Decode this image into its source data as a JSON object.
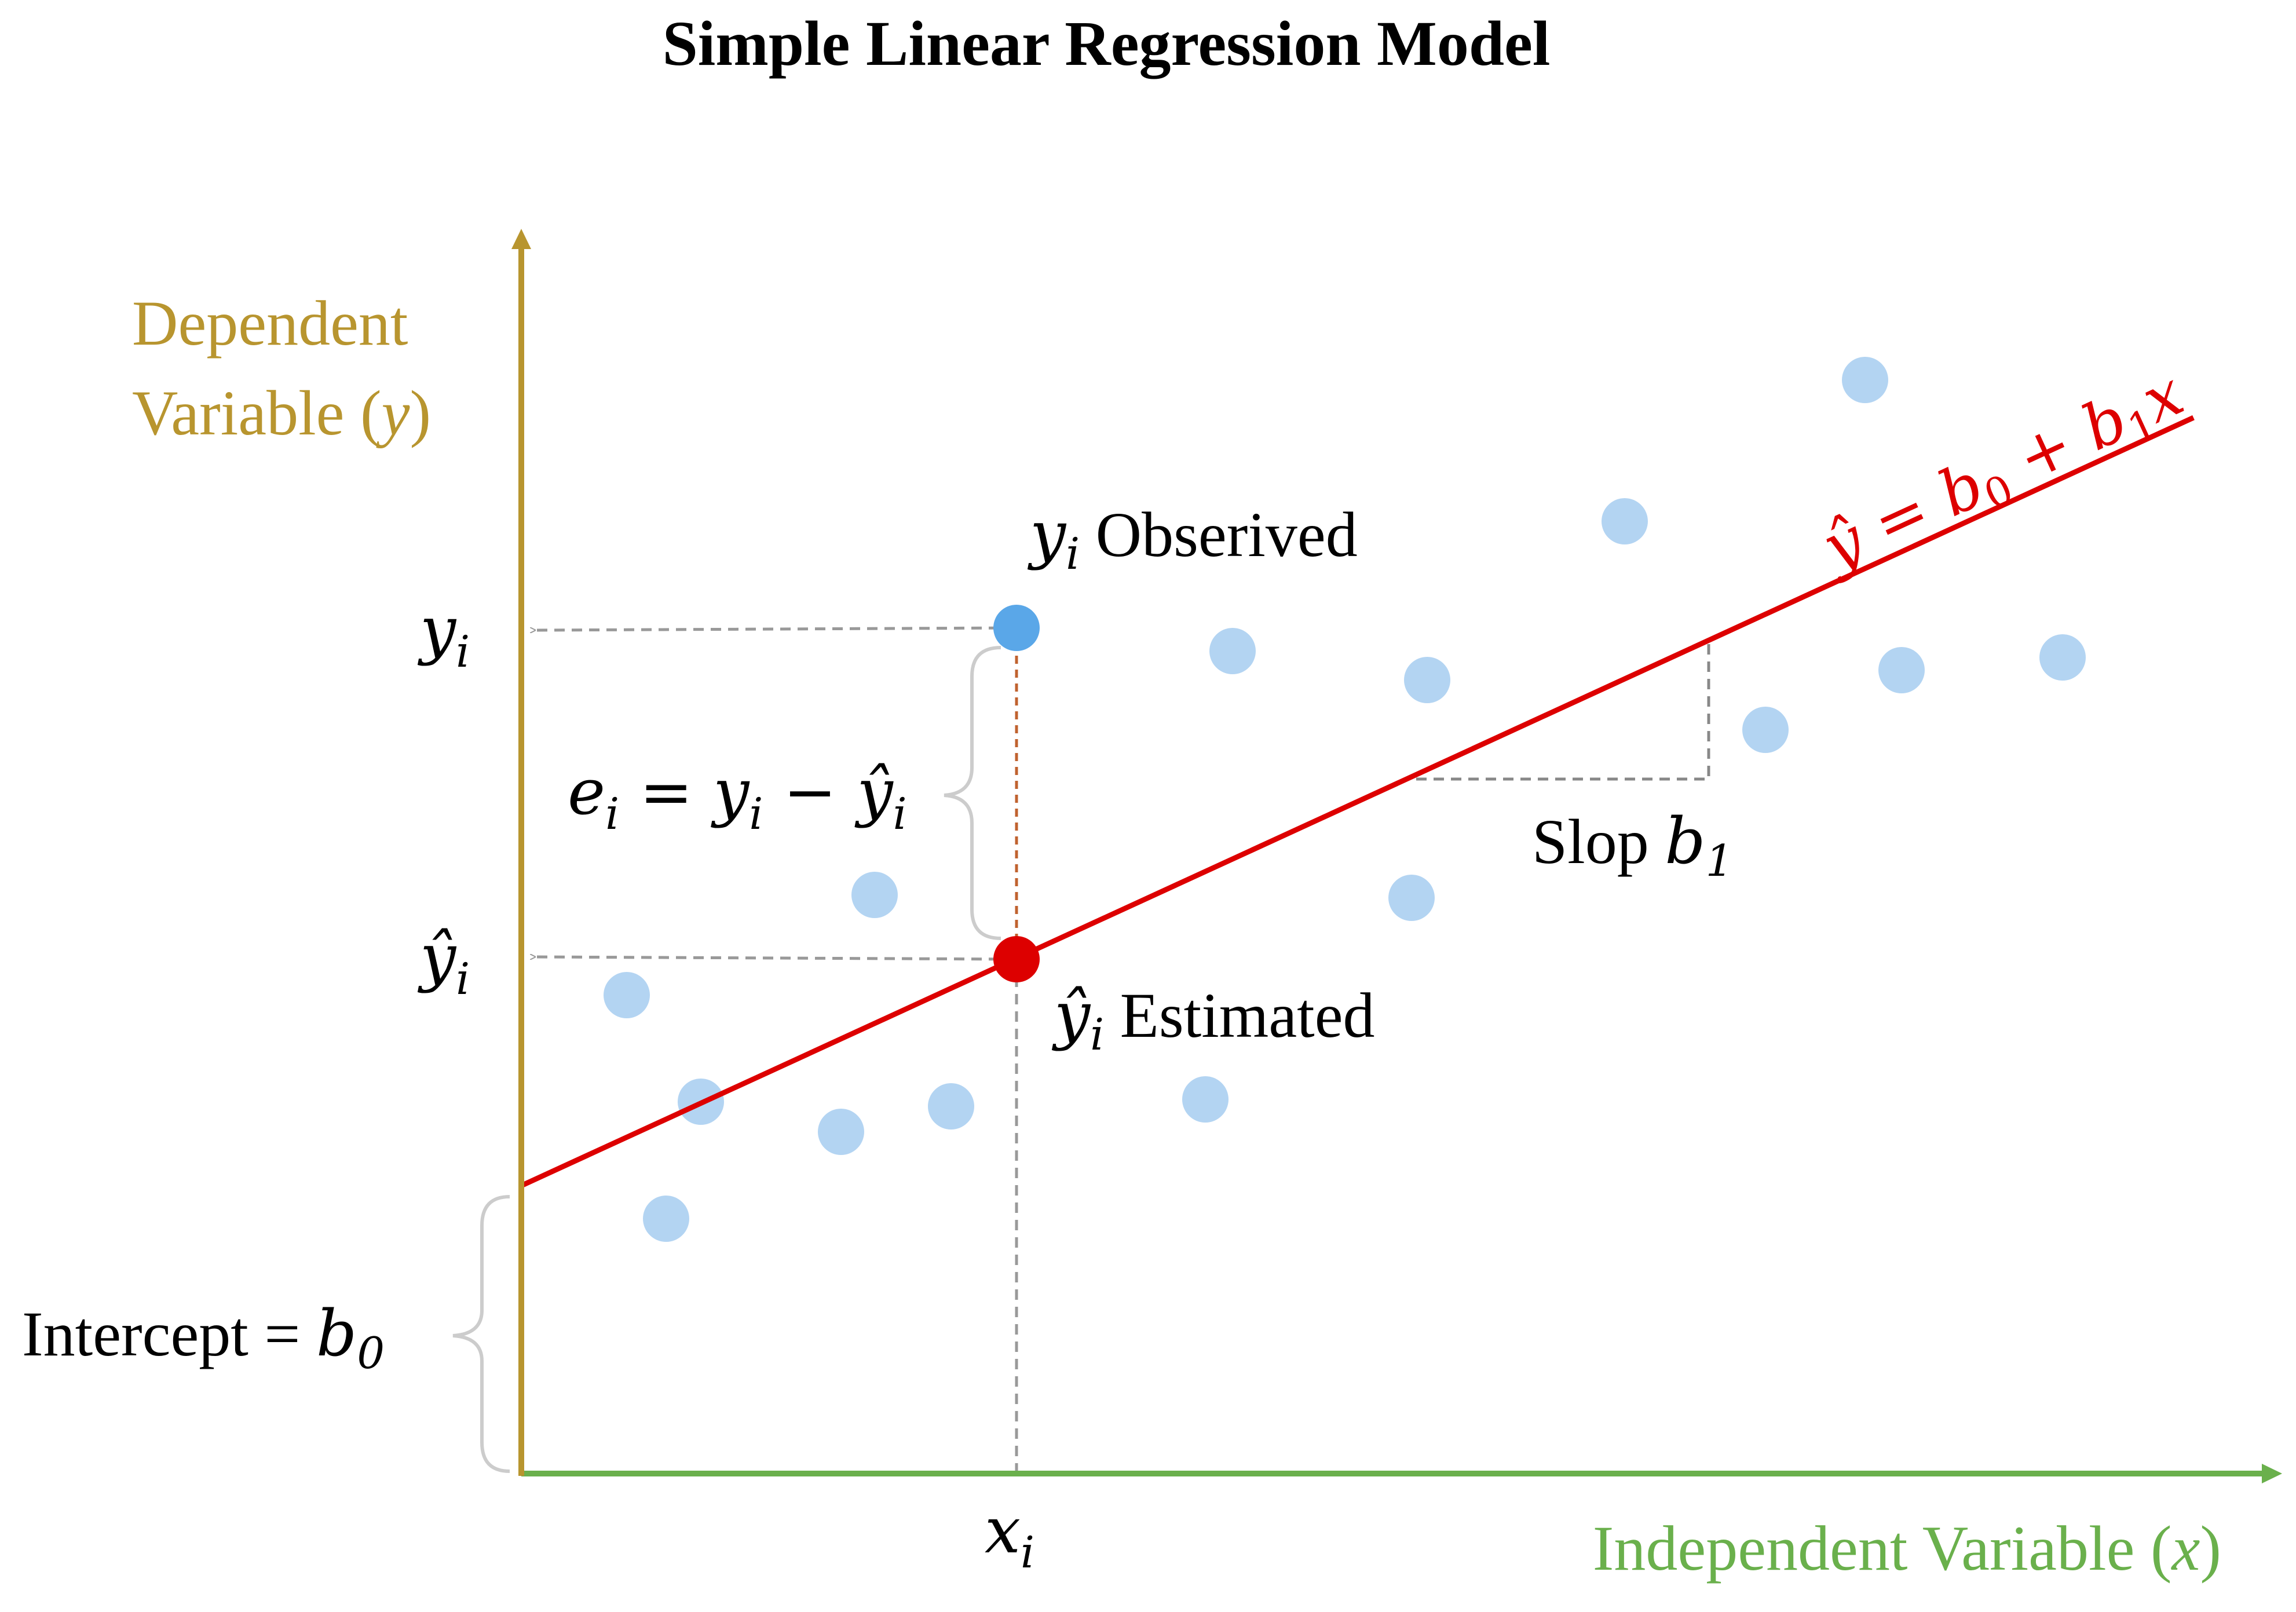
{
  "title": "Simple Linear Regression Model",
  "y_axis": {
    "label_line1": "Dependent",
    "label_line2": "Variable (",
    "label_var": "y",
    "label_close": ")",
    "color": "#b8952f"
  },
  "x_axis": {
    "label_text": "Independent Variable (",
    "label_var": "x",
    "label_close": ")",
    "color": "#6ab04c"
  },
  "regression_line": {
    "color": "#dd0000",
    "equation": {
      "yhat": "ŷ",
      "eq": " = ",
      "b": "b",
      "sub0": "0",
      "plus": " + ",
      "sub1": "1",
      "x": "x"
    }
  },
  "observed": {
    "var": "y",
    "sub": "i",
    "text": " Obserived",
    "color": "#5aa7e8"
  },
  "estimated": {
    "var": "ŷ",
    "sub": "i",
    "text": " Estimated",
    "color": "#dd0000"
  },
  "y_ticks": {
    "yi_var": "y",
    "yi_sub": "i",
    "yhat_var": "ŷ",
    "yhat_sub": "i"
  },
  "x_tick": {
    "var": "x",
    "sub": "i"
  },
  "residual": {
    "e": "e",
    "e_sub": "i",
    "eq": " = ",
    "y": "y",
    "y_sub": "i",
    "minus": " − ",
    "yhat": "ŷ",
    "yhat_sub": "i"
  },
  "slope": {
    "text": "Slop ",
    "var": "b",
    "sub": "1"
  },
  "intercept": {
    "text": "Intercept = ",
    "var": "b",
    "sub": "0"
  },
  "scatter_color": "#b3d4f2"
}
